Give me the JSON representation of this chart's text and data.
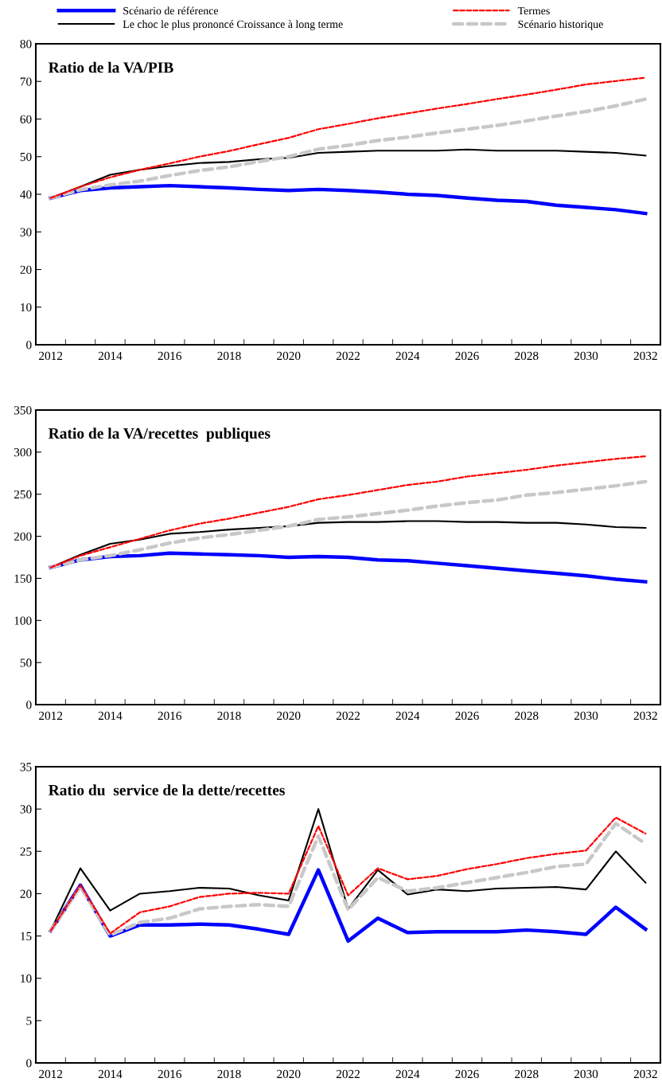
{
  "chart_data": [
    {
      "type": "line",
      "title": "Ratio de la VA/PIB",
      "legend": "top",
      "grid": false,
      "categories": [
        "2012",
        null,
        "2014",
        null,
        "2016",
        null,
        "2018",
        null,
        "2020",
        null,
        "2022",
        null,
        "2024",
        null,
        "2026",
        null,
        "2028",
        null,
        "2030",
        null,
        "2032"
      ],
      "ylim": [
        0,
        80
      ],
      "yticks": [
        0,
        10,
        20,
        30,
        40,
        50,
        60,
        70,
        80
      ],
      "series": [
        {
          "name": "Scénario de référence",
          "color": "#0000ff",
          "line_style": "solid",
          "values": [
            39,
            41,
            41.7,
            42,
            42.3,
            42,
            41.7,
            41.3,
            41,
            41.3,
            41,
            40.6,
            40,
            39.7,
            39,
            38.4,
            38.1,
            37.1,
            36.5,
            35.9,
            34.9
          ]
        },
        {
          "name": "Termes",
          "color": "#ff0000",
          "line_style": "dashed",
          "values": [
            39,
            42,
            44.5,
            46.5,
            48.2,
            50,
            51.5,
            53.3,
            55,
            57.3,
            58.7,
            60.2,
            61.5,
            62.8,
            64,
            65.3,
            66.5,
            67.8,
            69.2,
            70.1,
            71
          ]
        },
        {
          "name": "Le choc le plus prononcé Croissance à long terme",
          "color": "#000000",
          "line_style": "solid",
          "values": [
            39,
            42,
            45.2,
            46.5,
            47.5,
            48.3,
            48.6,
            49.3,
            49.7,
            51,
            51.3,
            51.6,
            51.6,
            51.6,
            51.9,
            51.6,
            51.6,
            51.6,
            51.3,
            51,
            50.3
          ]
        },
        {
          "name": "Scénario historique",
          "color": "#c8c8c8",
          "line_style": "dashed",
          "values": [
            39,
            41.2,
            42.5,
            43.5,
            45,
            46.3,
            47.3,
            48.7,
            50,
            52,
            53,
            54.3,
            55.2,
            56.3,
            57.3,
            58.3,
            59.5,
            60.8,
            62,
            63.5,
            65.3
          ]
        }
      ]
    },
    {
      "type": "line",
      "title": "Ratio de la VA/recettes  publiques",
      "grid": false,
      "categories": [
        "2012",
        null,
        "2014",
        null,
        "2016",
        null,
        "2018",
        null,
        "2020",
        null,
        "2022",
        null,
        "2024",
        null,
        "2026",
        null,
        "2028",
        null,
        "2030",
        null,
        "2032"
      ],
      "ylim": [
        0,
        350
      ],
      "yticks": [
        0,
        50,
        100,
        150,
        200,
        250,
        300,
        350
      ],
      "series": [
        {
          "color": "#0000ff",
          "line_style": "solid",
          "values": [
            163,
            172,
            176,
            177,
            180,
            179,
            178,
            177,
            175,
            176,
            175,
            172,
            171,
            168,
            165,
            162,
            159,
            156,
            153,
            149,
            146
          ]
        },
        {
          "color": "#ff0000",
          "line_style": "dashed",
          "values": [
            163,
            177,
            187,
            197,
            207,
            215,
            221,
            228,
            235,
            244,
            249,
            255,
            261,
            265,
            271,
            275,
            279,
            284,
            288,
            292,
            295
          ]
        },
        {
          "color": "#000000",
          "line_style": "solid",
          "values": [
            163,
            178,
            191,
            196,
            203,
            205,
            208,
            210,
            212,
            216,
            217,
            217,
            218,
            218,
            217,
            217,
            216,
            216,
            214,
            211,
            210
          ]
        },
        {
          "color": "#c8c8c8",
          "line_style": "dashed",
          "values": [
            163,
            172,
            177,
            184,
            192,
            198,
            202,
            207,
            212,
            220,
            223,
            227,
            231,
            236,
            240,
            243,
            249,
            252,
            256,
            260,
            265
          ]
        }
      ]
    },
    {
      "type": "line",
      "title": "Ratio du  service de la dette/recettes",
      "grid": false,
      "categories": [
        "2012",
        null,
        "2014",
        null,
        "2016",
        null,
        "2018",
        null,
        "2020",
        null,
        "2022",
        null,
        "2024",
        null,
        "2026",
        null,
        "2028",
        null,
        "2030",
        null,
        "2032"
      ],
      "ylim": [
        0,
        35
      ],
      "yticks": [
        0,
        5,
        10,
        15,
        20,
        25,
        30,
        35
      ],
      "series": [
        {
          "color": "#0000ff",
          "line_style": "solid",
          "values": [
            15.6,
            21,
            15,
            16.3,
            16.3,
            16.4,
            16.3,
            15.8,
            15.2,
            22.8,
            14.4,
            17.1,
            15.4,
            15.5,
            15.5,
            15.5,
            15.7,
            15.5,
            15.2,
            18.4,
            15.8
          ]
        },
        {
          "color": "#ff0000",
          "line_style": "dashed",
          "values": [
            15.6,
            21,
            15.3,
            17.8,
            18.5,
            19.6,
            20,
            20.1,
            20,
            28,
            19.8,
            23,
            21.7,
            22.1,
            22.9,
            23.5,
            24.2,
            24.7,
            25.1,
            29,
            27.1
          ]
        },
        {
          "color": "#000000",
          "line_style": "solid",
          "values": [
            15.6,
            23,
            18,
            20,
            20.3,
            20.7,
            20.6,
            19.8,
            19.2,
            30,
            18.2,
            22.8,
            19.9,
            20.5,
            20.3,
            20.6,
            20.7,
            20.8,
            20.5,
            25,
            21.3
          ]
        },
        {
          "color": "#c8c8c8",
          "line_style": "dashed",
          "values": [
            15.6,
            20.8,
            15.1,
            16.6,
            17.1,
            18.2,
            18.5,
            18.7,
            18.5,
            26.8,
            18.1,
            21.9,
            20.3,
            20.7,
            21.3,
            21.9,
            22.5,
            23.2,
            23.5,
            28.3,
            25.9
          ]
        }
      ]
    }
  ]
}
